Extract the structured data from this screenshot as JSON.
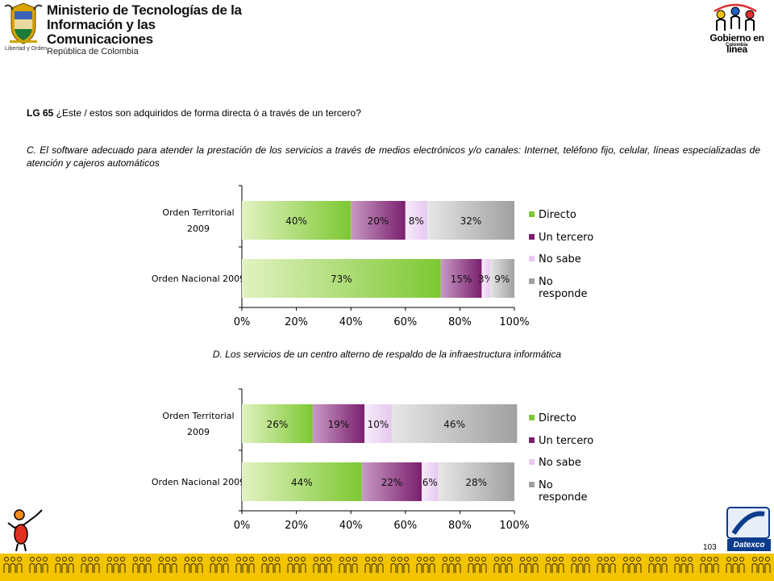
{
  "header": {
    "ministry_line1": "Ministerio de Tecnologías de la",
    "ministry_line2": "Información y las Comunicaciones",
    "ministry_sub": "República de Colombia",
    "motto": "Libertad y Orden",
    "gel_name": "Gobierno en línea",
    "gel_country": "Colombia"
  },
  "question": {
    "code": "LG 65",
    "text": " ¿Este / estos  son adquiridos de forma directa ó a través de un tercero?"
  },
  "section_c_title": "C. El software adecuado para atender la prestación de los servicios a través de medios electrónicos y/o canales: Internet, teléfono fijo, celular, líneas especializadas de atención y cajeros automáticos",
  "section_d_title": "D. Los servicios de un centro alterno de respaldo de la infraestructura informática",
  "colors": {
    "directo": "#7dc832",
    "un_tercero": "#7a1f6e",
    "no_sabe": "#e8c8f0",
    "no_responde": "#a0a0a0"
  },
  "chart_data": [
    {
      "type": "bar",
      "orientation": "horizontal",
      "stacked": true,
      "categories": [
        "Orden Territorial 2009",
        "Orden Nacional 2009"
      ],
      "category_lines": [
        [
          "Orden Territorial",
          "2009"
        ],
        [
          "Orden Nacional 2009"
        ]
      ],
      "series": [
        {
          "name": "Directo",
          "values": [
            40,
            73
          ],
          "labels": [
            "40%",
            "73%"
          ]
        },
        {
          "name": "Un tercero",
          "values": [
            20,
            15
          ],
          "labels": [
            "20%",
            "15%"
          ]
        },
        {
          "name": "No sabe",
          "values": [
            8,
            3
          ],
          "labels": [
            "8%",
            "3%"
          ]
        },
        {
          "name": "No responde",
          "values": [
            32,
            9
          ],
          "labels": [
            "32%",
            "9%"
          ]
        }
      ],
      "legend": [
        "Directo",
        "Un tercero",
        "No sabe",
        "No responde"
      ],
      "ticks": [
        "0%",
        "20%",
        "40%",
        "60%",
        "80%",
        "100%"
      ],
      "xlim": [
        0,
        100
      ],
      "legend_position": "right"
    },
    {
      "type": "bar",
      "orientation": "horizontal",
      "stacked": true,
      "categories": [
        "Orden Territorial 2009",
        "Orden Nacional 2009"
      ],
      "category_lines": [
        [
          "Orden Territorial",
          "2009"
        ],
        [
          "Orden Nacional 2009"
        ]
      ],
      "series": [
        {
          "name": "Directo",
          "values": [
            26,
            44
          ],
          "labels": [
            "26%",
            "44%"
          ]
        },
        {
          "name": "Un tercero",
          "values": [
            19,
            22
          ],
          "labels": [
            "19%",
            "22%"
          ]
        },
        {
          "name": "No sabe",
          "values": [
            10,
            6
          ],
          "labels": [
            "10%",
            "6%"
          ]
        },
        {
          "name": "No responde",
          "values": [
            46,
            28
          ],
          "labels": [
            "46%",
            "28%"
          ]
        }
      ],
      "legend": [
        "Directo",
        "Un tercero",
        "No sabe",
        "No responde"
      ],
      "ticks": [
        "0%",
        "20%",
        "40%",
        "60%",
        "80%",
        "100%"
      ],
      "xlim": [
        0,
        100
      ],
      "legend_position": "right"
    }
  ],
  "footer": {
    "page_number": "103",
    "brand": "Datexco"
  }
}
